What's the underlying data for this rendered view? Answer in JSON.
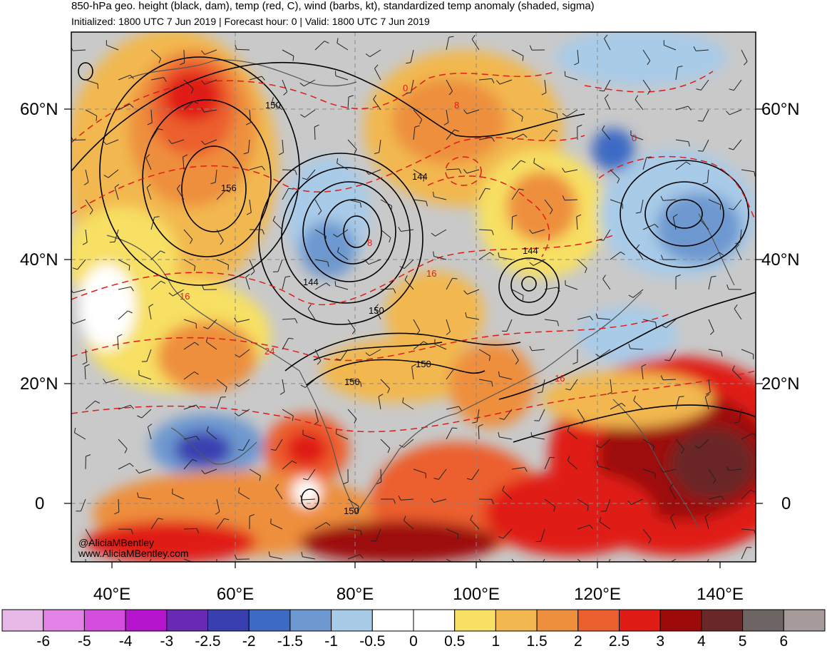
{
  "header": {
    "title": "850-hPa geo. height (black, dam), temp (red, C), wind (barbs, kt), standardized temp anomaly (shaded, sigma)",
    "subtitle": "Initialized: 1800 UTC 7 Jun 2019 | Forecast hour: 0 | Valid: 1800 UTC 7 Jun 2019"
  },
  "map": {
    "lat_labels": [
      "60°N",
      "40°N",
      "20°N",
      "0"
    ],
    "lon_labels": [
      "40°E",
      "60°E",
      "80°E",
      "100°E",
      "120°E",
      "140°E"
    ],
    "height_contour_labels": [
      "150",
      "156",
      "144",
      "144",
      "144",
      "150",
      "150",
      "150",
      "150"
    ],
    "temp_contour_labels": [
      "0",
      "8",
      "8",
      "0",
      "16",
      "16",
      "16",
      "24"
    ],
    "credit_handle": "@AliciaMBentley",
    "credit_url": "www.AliciaMBentley.com"
  },
  "colorbar": {
    "labels": [
      "-6",
      "-5",
      "-4",
      "-3",
      "-2.5",
      "-2",
      "-1.5",
      "-1",
      "-0.5",
      "0",
      "0.5",
      "1",
      "1.5",
      "2",
      "2.5",
      "3",
      "4",
      "5",
      "6"
    ],
    "colors": [
      "#e6b8e6",
      "#e281e6",
      "#d24ddb",
      "#b314cc",
      "#6a29b5",
      "#3a3fb0",
      "#3d6bc4",
      "#6d98d0",
      "#a8cbe8",
      "#ffffff",
      "#ffffff",
      "#f7e063",
      "#f2b84f",
      "#ee8f3d",
      "#ec5f2f",
      "#e01c17",
      "#9d0a0a",
      "#6a2727",
      "#6d6464",
      "#a79a9a"
    ]
  }
}
